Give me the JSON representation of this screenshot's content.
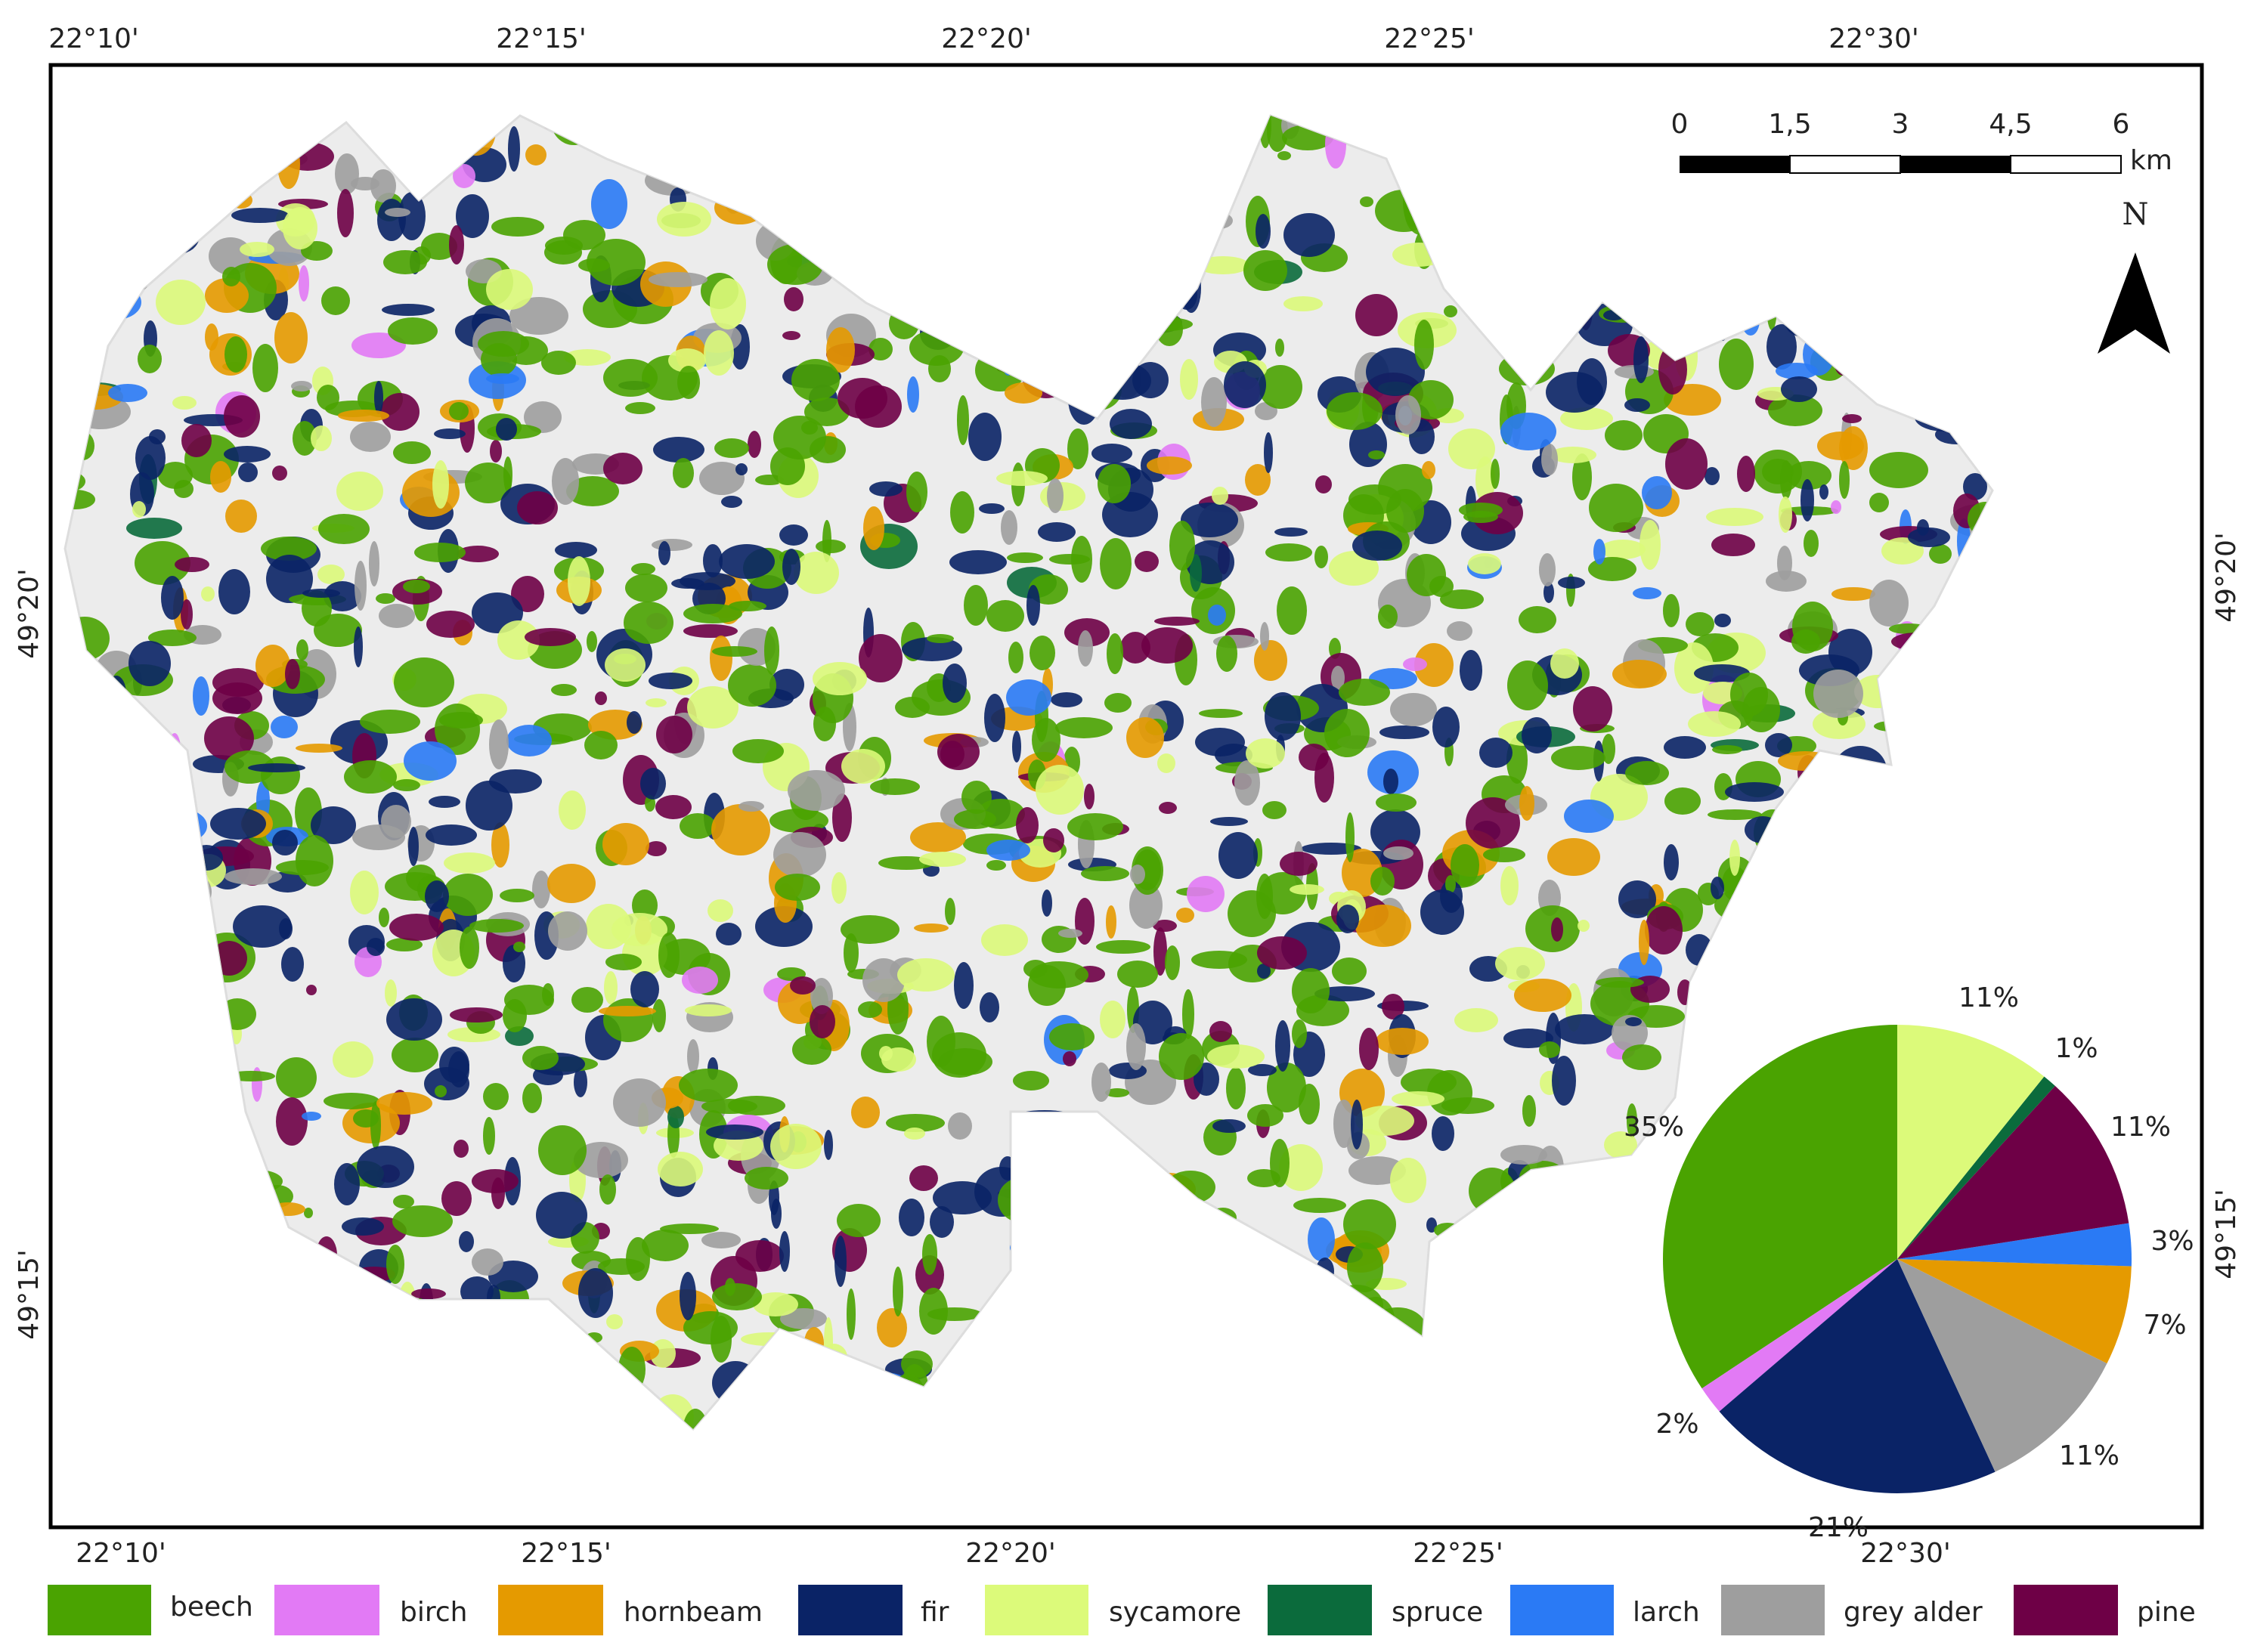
{
  "map": {
    "graticule": {
      "top": [
        "22°10'",
        "22°15'",
        "22°20'",
        "22°25'",
        "22°30'"
      ],
      "bottom": [
        "22°10'",
        "22°15'",
        "22°20'",
        "22°25'",
        "22°30'"
      ],
      "left": [
        "49°20'",
        "49°15'"
      ],
      "right": [
        "49°20'",
        "49°15'"
      ]
    },
    "scale_bar": {
      "labels": [
        "0",
        "1,5",
        "3",
        "4,5",
        "6"
      ],
      "unit": "km"
    },
    "north": "N"
  },
  "chart_data": {
    "type": "pie",
    "categories": [
      "beech",
      "birch",
      "fir",
      "grey alder",
      "hornbeam",
      "larch",
      "pine",
      "spruce",
      "sycamore"
    ],
    "values": [
      35,
      2,
      21,
      11,
      7,
      3,
      11,
      1,
      11
    ],
    "value_labels": [
      "35%",
      "2%",
      "21%",
      "11%",
      "7%",
      "3%",
      "11%",
      "1%",
      "11%"
    ],
    "colors": [
      "#4aa301",
      "#e27af5",
      "#0a2366",
      "#9e9e9e",
      "#e59a00",
      "#2a7af5",
      "#6e0046",
      "#0b6b3c",
      "#dcfa7a"
    ]
  }
}
